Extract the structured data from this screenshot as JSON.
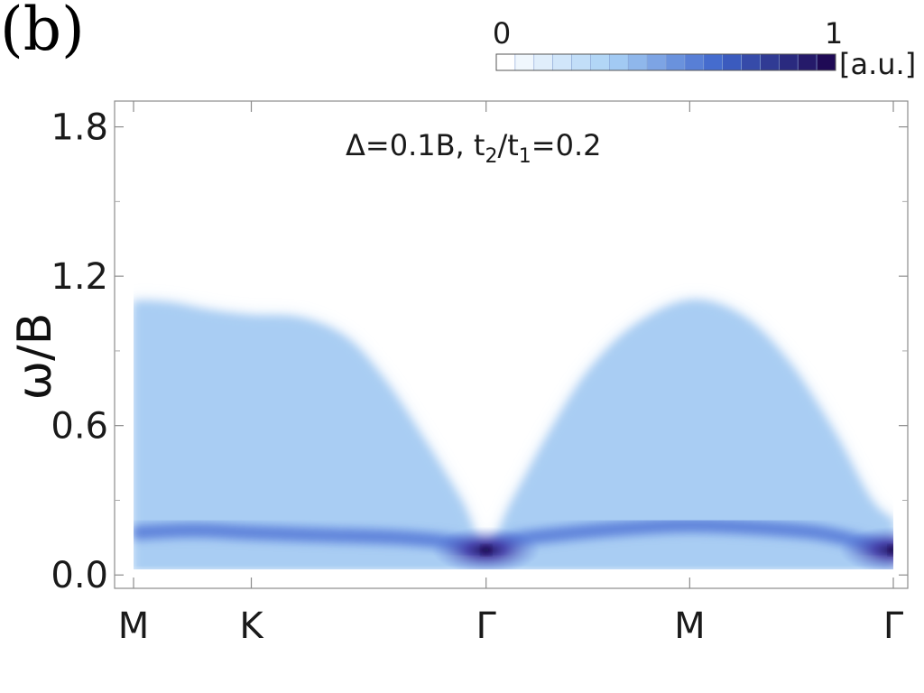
{
  "panel_label": "(b)",
  "annotation": {
    "prefix": "Δ=0.1B, t",
    "sub1": "2",
    "mid": "/t",
    "sub2": "1",
    "suffix": "=0.2"
  },
  "colorbar": {
    "min_label": "0",
    "max_label": "1",
    "unit": "[a.u.]",
    "steps": 18,
    "colors": [
      "#ffffff",
      "#a8d0f5",
      "#3f66cc",
      "#1f0a55"
    ]
  },
  "colors": {
    "continuum": "#a9cdf3",
    "continuum_edge": "#c6ddf7",
    "dispersion": "#4a6fd8",
    "peak": "#1c0b55",
    "frame": "#8c8c8c"
  },
  "chart_data": {
    "type": "heatmap",
    "ylabel": "ω/B",
    "ylim": [
      -0.05,
      1.9
    ],
    "y_ticks": [
      0.0,
      0.6,
      1.2,
      1.8
    ],
    "y_tick_labels": [
      "0.0",
      "0.6",
      "1.2",
      "1.8"
    ],
    "x_ticks": [
      {
        "label": "M",
        "pos": 0.0
      },
      {
        "label": "K",
        "pos": 0.155
      },
      {
        "label": "Γ",
        "pos": 0.464
      },
      {
        "label": "M",
        "pos": 0.732
      },
      {
        "label": "Γ",
        "pos": 1.0
      }
    ],
    "continuum_upper_edge": [
      {
        "x": 0.0,
        "y": 1.1
      },
      {
        "x": 0.05,
        "y": 1.09
      },
      {
        "x": 0.1,
        "y": 1.06
      },
      {
        "x": 0.155,
        "y": 1.04
      },
      {
        "x": 0.22,
        "y": 1.03
      },
      {
        "x": 0.28,
        "y": 0.95
      },
      {
        "x": 0.33,
        "y": 0.78
      },
      {
        "x": 0.38,
        "y": 0.55
      },
      {
        "x": 0.43,
        "y": 0.3
      },
      {
        "x": 0.464,
        "y": 0.1
      },
      {
        "x": 0.5,
        "y": 0.3
      },
      {
        "x": 0.55,
        "y": 0.58
      },
      {
        "x": 0.6,
        "y": 0.82
      },
      {
        "x": 0.66,
        "y": 1.0
      },
      {
        "x": 0.732,
        "y": 1.1
      },
      {
        "x": 0.8,
        "y": 1.04
      },
      {
        "x": 0.86,
        "y": 0.86
      },
      {
        "x": 0.92,
        "y": 0.58
      },
      {
        "x": 0.97,
        "y": 0.3
      },
      {
        "x": 1.0,
        "y": 0.22
      }
    ],
    "continuum_lower_edge": [
      {
        "x": 0.0,
        "y": 0.02
      },
      {
        "x": 0.464,
        "y": 0.0
      },
      {
        "x": 1.0,
        "y": 0.0
      }
    ],
    "dispersion_band": [
      {
        "x": 0.0,
        "y": 0.17
      },
      {
        "x": 0.08,
        "y": 0.18
      },
      {
        "x": 0.155,
        "y": 0.17
      },
      {
        "x": 0.25,
        "y": 0.16
      },
      {
        "x": 0.35,
        "y": 0.15
      },
      {
        "x": 0.42,
        "y": 0.13
      },
      {
        "x": 0.464,
        "y": 0.1
      },
      {
        "x": 0.5,
        "y": 0.14
      },
      {
        "x": 0.58,
        "y": 0.17
      },
      {
        "x": 0.66,
        "y": 0.19
      },
      {
        "x": 0.732,
        "y": 0.2
      },
      {
        "x": 0.82,
        "y": 0.19
      },
      {
        "x": 0.9,
        "y": 0.17
      },
      {
        "x": 0.96,
        "y": 0.13
      },
      {
        "x": 1.0,
        "y": 0.1
      }
    ],
    "intensity_peaks": [
      {
        "x": 0.464,
        "y": 0.1,
        "value": 1.0
      },
      {
        "x": 1.0,
        "y": 0.1,
        "value": 1.0
      }
    ]
  }
}
